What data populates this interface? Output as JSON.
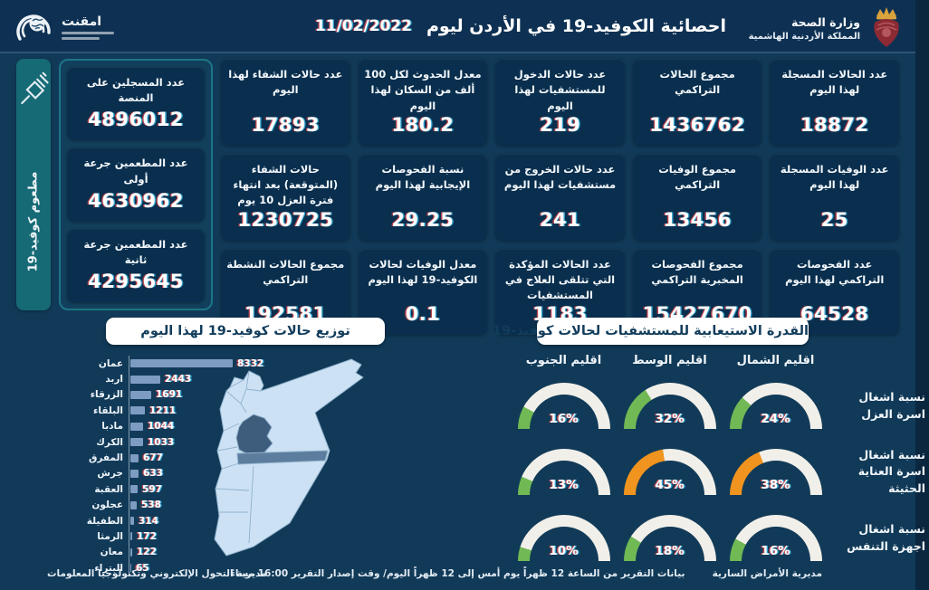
{
  "header": {
    "title": "احصائية الكوفيد-19 في الأردن ليوم",
    "date": "11/02/2022",
    "ministry": {
      "line1": "وزارة الصحة",
      "line2": "المملكة الأردنية الهاشمية"
    },
    "brand": {
      "name": "امقنت"
    }
  },
  "vaccine_strip": {
    "label": "مطعوم كوفيد-19"
  },
  "stat_cards": [
    {
      "label": "عدد الحالات المسجلة لهذا اليوم",
      "value": "18872"
    },
    {
      "label": "مجموع الحالات التراكمي",
      "value": "1436762"
    },
    {
      "label": "عدد حالات الدخول للمستشفيات لهذا اليوم",
      "value": "219"
    },
    {
      "label": "معدل الحدوث لكل 100 ألف من السكان لهذا اليوم",
      "value": "180.2"
    },
    {
      "label": "عدد حالات الشفاء لهذا اليوم",
      "value": "17893"
    },
    {
      "label": "عدد الوفيات المسجلة لهذا اليوم",
      "value": "25"
    },
    {
      "label": "مجموع الوفيات التراكمي",
      "value": "13456"
    },
    {
      "label": "عدد حالات الخروج من مستشفيات لهذا اليوم",
      "value": "241"
    },
    {
      "label": "نسبة الفحوصات الإيجابية لهذا اليوم",
      "value": "29.25"
    },
    {
      "label": "حالات الشفاء (المتوقعة) بعد انتهاء فترة العزل 10 يوم",
      "value": "1230725"
    },
    {
      "label": "عدد الفحوصات التراكمي لهذا اليوم",
      "value": "64528"
    },
    {
      "label": "مجموع الفحوصات المخبرية التراكمي",
      "value": "15427670"
    },
    {
      "label": "عدد الحالات المؤكدة التي تتلقى العلاج في المستشفيات",
      "value": "1183"
    },
    {
      "label": "معدل الوفيات لحالات الكوفيد-19 لهذا اليوم",
      "value": "0.1"
    },
    {
      "label": "مجموع الحالات النشطة التراكمي",
      "value": "192581"
    }
  ],
  "vaccine_cards": [
    {
      "label": "عدد المسجلين على المنصة",
      "value": "4896012"
    },
    {
      "label": "عدد المطعمين جرعة أولى",
      "value": "4630962"
    },
    {
      "label": "عدد المطعمين جرعة ثانية",
      "value": "4295645"
    }
  ],
  "chart_data": [
    {
      "type": "bar",
      "title": "توزيع حالات كوفيد-19 لهذا اليوم",
      "orientation": "horizontal",
      "categories": [
        "عمان",
        "اربد",
        "الزرقاء",
        "البلقاء",
        "مادبا",
        "الكرك",
        "المفرق",
        "جرش",
        "العقبة",
        "عجلون",
        "الطفيلة",
        "الرمثا",
        "معان",
        "البتراء"
      ],
      "values": [
        8332,
        2443,
        1691,
        1211,
        1044,
        1033,
        677,
        633,
        597,
        538,
        314,
        172,
        122,
        65
      ],
      "bar_color": "#7E9CC2",
      "value_labels": true,
      "xlim": [
        0,
        8332
      ]
    },
    {
      "type": "gauge",
      "title": "القدرة الاستيعابية للمستشفيات لحالات كوفيد-19",
      "regions": [
        "اقليم الجنوب",
        "اقليم الوسط",
        "اقليم الشمال"
      ],
      "rows": [
        {
          "label": "نسبة اشغال اسرة العزل",
          "values": [
            {
              "region": "اقليم الجنوب",
              "pct": 16,
              "color": "#70B954"
            },
            {
              "region": "اقليم الوسط",
              "pct": 32,
              "color": "#70B954"
            },
            {
              "region": "اقليم الشمال",
              "pct": 24,
              "color": "#70B954"
            }
          ]
        },
        {
          "label": "نسبة اشغال اسرة العناية الحثيثة",
          "values": [
            {
              "region": "اقليم الجنوب",
              "pct": 13,
              "color": "#70B954"
            },
            {
              "region": "اقليم الوسط",
              "pct": 45,
              "color": "#F0941F"
            },
            {
              "region": "اقليم الشمال",
              "pct": 38,
              "color": "#F0941F"
            }
          ]
        },
        {
          "label": "نسبة اشغال اجهزة التنفس",
          "values": [
            {
              "region": "اقليم الجنوب",
              "pct": 10,
              "color": "#70B954"
            },
            {
              "region": "اقليم الوسط",
              "pct": 18,
              "color": "#70B954"
            },
            {
              "region": "اقليم الشمال",
              "pct": 16,
              "color": "#70B954"
            }
          ]
        }
      ],
      "track_color": "#F1EFE9"
    }
  ],
  "colors": {
    "background": "#113A58",
    "header": "#0E3153",
    "card": "#0A2F4E",
    "teal_accent": "#1B7683",
    "bar": "#7E9CC2",
    "gauge_green": "#70B954",
    "gauge_orange": "#F0941F",
    "map_light": "#CCE2F4",
    "map_dark": "#3E5D7D",
    "map_band": "#5C7D9E"
  },
  "footer": {
    "right": "مديرية الأمراض السارية",
    "center": "بيانات التقرير من الساعة 12 ظهراً يوم أمس إلى 12 ظهراً اليوم/ وقت إصدار التقرير 16:00 مساءً",
    "left": "مديرية التحول الإلكتروني وتكنولوجيا المعلومات"
  }
}
